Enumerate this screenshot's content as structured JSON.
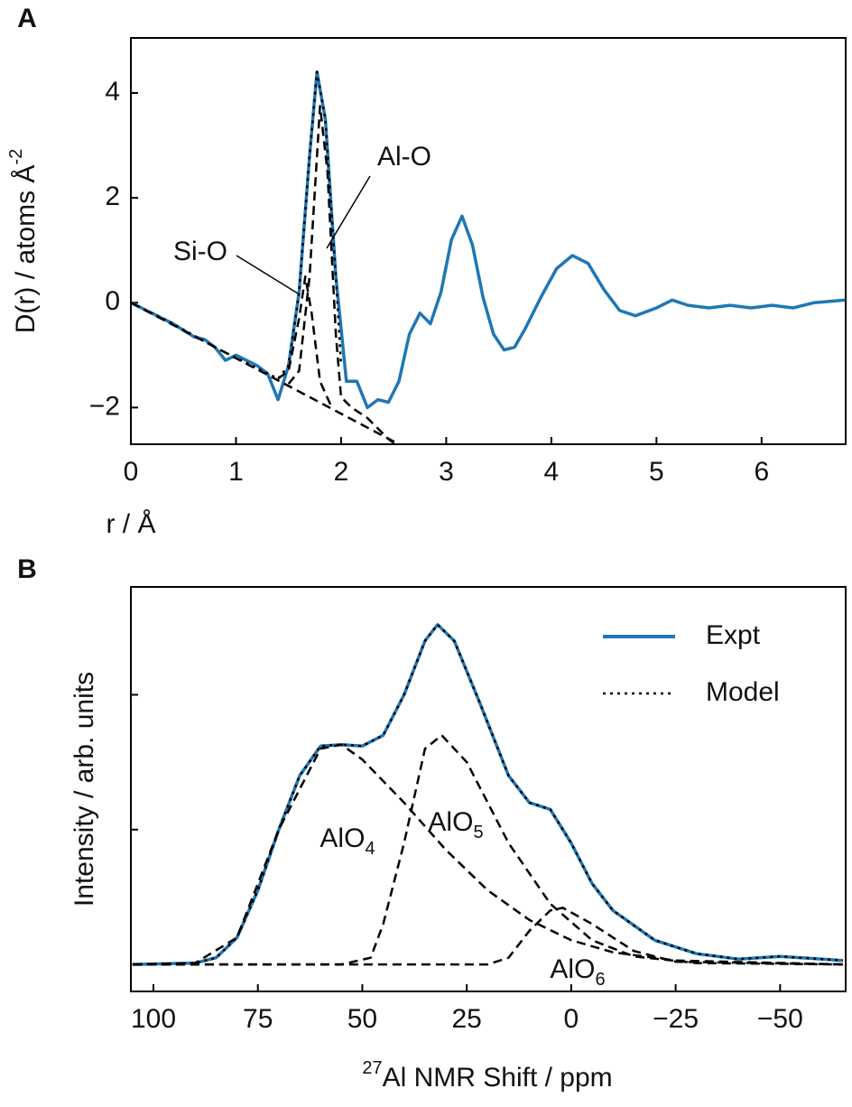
{
  "chart_data": [
    {
      "type": "line",
      "panel_label": "A",
      "x_label": "r / Å",
      "y_label": {
        "text": "D(r) / atoms Å",
        "sup": "-2"
      },
      "xlim": [
        0,
        6.8
      ],
      "ylim": [
        -2.7,
        5.05
      ],
      "xticks": [
        0,
        1,
        2,
        3,
        4,
        5,
        6
      ],
      "yticks": [
        {
          "value": -2,
          "label": "−2"
        },
        0,
        2,
        4
      ],
      "annotations": [
        "Si-O",
        "Al-O"
      ],
      "series": [
        {
          "name": "Expt",
          "color": "#1f77b4",
          "style": "solid",
          "x": [
            0,
            0.2,
            0.4,
            0.6,
            0.7,
            0.8,
            0.9,
            1.0,
            1.1,
            1.2,
            1.3,
            1.4,
            1.5,
            1.6,
            1.7,
            1.77,
            1.85,
            1.95,
            2.05,
            2.15,
            2.25,
            2.35,
            2.45,
            2.55,
            2.65,
            2.75,
            2.85,
            2.95,
            3.05,
            3.15,
            3.25,
            3.35,
            3.45,
            3.55,
            3.65,
            3.75,
            3.9,
            4.05,
            4.2,
            4.35,
            4.5,
            4.65,
            4.8,
            5.0,
            5.15,
            5.3,
            5.5,
            5.7,
            5.9,
            6.1,
            6.3,
            6.5,
            6.8
          ],
          "values": [
            0,
            -0.2,
            -0.4,
            -0.65,
            -0.7,
            -0.85,
            -1.1,
            -1.0,
            -1.1,
            -1.2,
            -1.35,
            -1.85,
            -1.2,
            0.2,
            2.8,
            4.4,
            3.5,
            0.5,
            -1.5,
            -1.5,
            -2.0,
            -1.85,
            -1.9,
            -1.5,
            -0.6,
            -0.2,
            -0.4,
            0.2,
            1.2,
            1.65,
            1.1,
            0.1,
            -0.6,
            -0.9,
            -0.85,
            -0.5,
            0.1,
            0.65,
            0.9,
            0.75,
            0.25,
            -0.15,
            -0.25,
            -0.1,
            0.05,
            -0.05,
            -0.1,
            -0.05,
            -0.1,
            -0.05,
            -0.1,
            0,
            0.05
          ]
        },
        {
          "name": "Model",
          "color": "#000000",
          "style": "dotted",
          "x": [
            0,
            0.4,
            0.8,
            1.2,
            1.4,
            1.5,
            1.6,
            1.7,
            1.77,
            1.85,
            1.95,
            2.0
          ],
          "values": [
            0,
            -0.4,
            -0.85,
            -1.25,
            -1.45,
            -1.2,
            0.2,
            2.8,
            4.4,
            3.5,
            0.5,
            -1.2
          ]
        },
        {
          "name": "Si-O",
          "color": "#000000",
          "style": "dashed",
          "x": [
            1.4,
            1.5,
            1.6,
            1.66,
            1.72,
            1.8,
            1.9
          ],
          "values": [
            -1.45,
            -1.3,
            -0.3,
            0.5,
            -0.2,
            -1.5,
            -1.95
          ]
        },
        {
          "name": "Al-O",
          "color": "#000000",
          "style": "dashed",
          "x": [
            1.5,
            1.6,
            1.7,
            1.8,
            1.87,
            1.95,
            2.0,
            2.1,
            2.25,
            2.45,
            2.55
          ],
          "values": [
            -1.55,
            -1.3,
            0.5,
            3.75,
            2.5,
            -0.6,
            -1.8,
            -2.0,
            -2.2,
            -2.6,
            -2.75
          ]
        },
        {
          "color": "#000000",
          "style": "dashed",
          "x": [
            0,
            2.55
          ],
          "values": [
            0,
            -2.7
          ]
        }
      ]
    },
    {
      "type": "line",
      "panel_label": "B",
      "x_label": {
        "sup": "27",
        "text": "Al NMR Shift / ppm"
      },
      "y_label": "Intensity / arb. units",
      "xlim": [
        105.4,
        -65.7
      ],
      "ylim": [
        -0.2,
        2.8
      ],
      "xticks": [
        100,
        75,
        50,
        25,
        0,
        {
          "value": -25,
          "label": "−25"
        },
        {
          "value": -50,
          "label": "−50"
        }
      ],
      "yticks": [
        1,
        2
      ],
      "legend": "upper right",
      "annotations": [
        {
          "text": "AlO",
          "sub": "4"
        },
        {
          "text": "AlO",
          "sub": "5"
        },
        {
          "text": "AlO",
          "sub": "6"
        }
      ],
      "series": [
        {
          "name": "Expt",
          "color": "#1f77b4",
          "style": "solid",
          "x": [
            105,
            90,
            85,
            80,
            75,
            70,
            65,
            60,
            55,
            50,
            45,
            40,
            35,
            32,
            28,
            22,
            15,
            10,
            5,
            0,
            -5,
            -10,
            -20,
            -30,
            -40,
            -50,
            -55,
            -65
          ],
          "values": [
            0,
            0.01,
            0.05,
            0.2,
            0.55,
            1.0,
            1.4,
            1.62,
            1.63,
            1.62,
            1.7,
            2.0,
            2.4,
            2.52,
            2.4,
            1.95,
            1.4,
            1.2,
            1.15,
            0.9,
            0.6,
            0.4,
            0.18,
            0.08,
            0.04,
            0.06,
            0.05,
            0.03
          ]
        },
        {
          "name": "Model",
          "color": "#000000",
          "style": "dotted",
          "x": [
            105,
            90,
            85,
            80,
            75,
            70,
            65,
            60,
            55,
            50,
            45,
            40,
            35,
            32,
            28,
            22,
            15,
            10,
            5,
            0,
            -5,
            -10,
            -20,
            -30,
            -40,
            -50,
            -55,
            -65
          ],
          "values": [
            0,
            0.01,
            0.05,
            0.2,
            0.55,
            1.0,
            1.4,
            1.62,
            1.63,
            1.62,
            1.7,
            2.0,
            2.4,
            2.52,
            2.4,
            1.95,
            1.4,
            1.2,
            1.15,
            0.9,
            0.6,
            0.4,
            0.18,
            0.08,
            0.04,
            0.06,
            0.05,
            0.03
          ]
        },
        {
          "color": "#000000",
          "style": "dashed",
          "x": [
            105,
            90,
            80,
            70,
            60,
            55,
            50,
            40,
            30,
            20,
            10,
            0,
            -10,
            -25,
            -65
          ],
          "values": [
            0,
            0.01,
            0.2,
            1.0,
            1.6,
            1.63,
            1.52,
            1.2,
            0.85,
            0.55,
            0.33,
            0.18,
            0.09,
            0.03,
            0
          ]
        },
        {
          "color": "#000000",
          "style": "dashed",
          "x": [
            105,
            55,
            48,
            45,
            40,
            35,
            31,
            25,
            15,
            5,
            -5,
            -15,
            -30,
            -65
          ],
          "values": [
            0,
            0,
            0.05,
            0.3,
            0.9,
            1.6,
            1.7,
            1.5,
            0.9,
            0.45,
            0.18,
            0.06,
            0.01,
            0
          ]
        },
        {
          "color": "#000000",
          "style": "dashed",
          "x": [
            105,
            20,
            15,
            10,
            5,
            2,
            -5,
            -15,
            -25,
            -65
          ],
          "values": [
            0,
            0,
            0.05,
            0.25,
            0.4,
            0.42,
            0.3,
            0.1,
            0.02,
            0
          ]
        }
      ]
    }
  ]
}
